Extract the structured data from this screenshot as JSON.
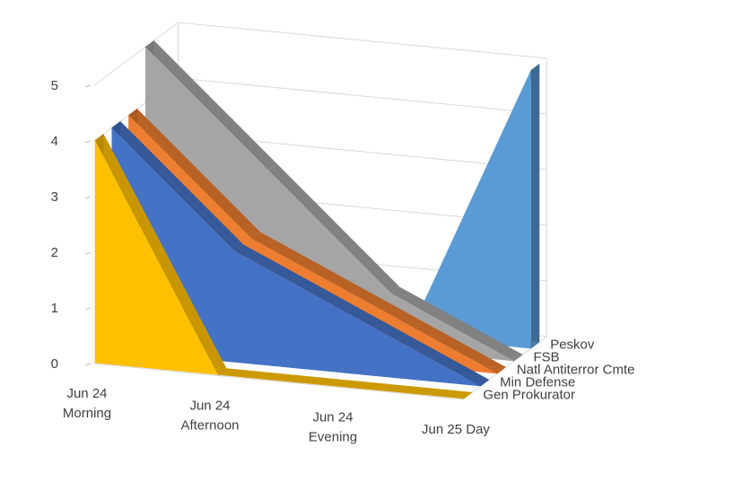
{
  "chart_data": {
    "type": "area",
    "subtype": "3d-area",
    "title": "",
    "categories": [
      "Jun 24\nMorning",
      "Jun 24\nAfternoon",
      "Jun 24\nEvening",
      "Jun 25 Day"
    ],
    "series": [
      {
        "name": "Gen Prokurator",
        "values": [
          4,
          0,
          0,
          0
        ],
        "color": "#FFC000"
      },
      {
        "name": "Min Defense",
        "values": [
          4,
          2,
          1,
          0
        ],
        "color": "#4472C4"
      },
      {
        "name": "Natl Antiterror Cmte",
        "values": [
          4,
          2,
          1,
          0
        ],
        "color": "#ED7D31"
      },
      {
        "name": "FSB",
        "values": [
          5,
          3,
          1,
          0
        ],
        "color": "#A5A5A5"
      },
      {
        "name": "Peskov",
        "values": [
          0,
          0,
          0,
          5
        ],
        "color": "#5B9BD5"
      }
    ],
    "ylim": [
      0,
      5
    ],
    "y_ticks": [
      "0",
      "1",
      "2",
      "3",
      "4",
      "5"
    ],
    "grid": true,
    "legend": "none"
  }
}
